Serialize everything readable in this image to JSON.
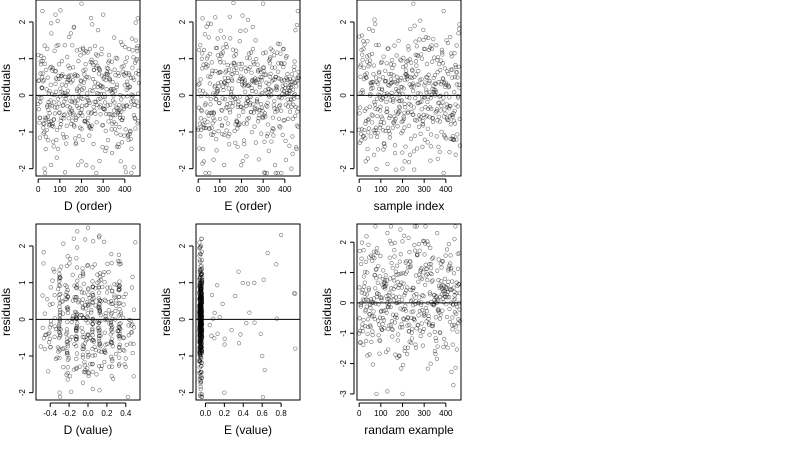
{
  "chart_data": [
    {
      "type": "scatter",
      "xlabel": "D (order)",
      "ylabel": "residuals",
      "xlim": [
        -10,
        470
      ],
      "ylim": [
        -2.2,
        2.6
      ],
      "xticks": [
        0,
        100,
        200,
        300,
        400
      ],
      "yticks": [
        -2,
        -1,
        0,
        1,
        2
      ],
      "hline": 0,
      "grid": false,
      "n_points": 470,
      "noise": {
        "dist": "normal",
        "sd": 0.85,
        "seed": 11
      },
      "points_sample": [
        [
          20,
          2.3
        ],
        [
          80,
          2.2
        ],
        [
          200,
          2.5
        ],
        [
          300,
          2.2
        ],
        [
          460,
          2.1
        ],
        [
          60,
          -1.9
        ],
        [
          30,
          -2.0
        ],
        [
          200,
          -1.8
        ]
      ]
    },
    {
      "type": "scatter",
      "xlabel": "E (order)",
      "ylabel": "residuals",
      "xlim": [
        -10,
        470
      ],
      "ylim": [
        -2.2,
        2.6
      ],
      "xticks": [
        0,
        100,
        200,
        300,
        400
      ],
      "yticks": [
        -2,
        -1,
        0,
        1,
        2
      ],
      "hline": 0,
      "grid": false,
      "n_points": 470,
      "noise": {
        "dist": "normal",
        "sd": 0.85,
        "seed": 23
      },
      "points_sample": [
        [
          300,
          2.5
        ],
        [
          460,
          2.3
        ],
        [
          20,
          2.1
        ],
        [
          120,
          -1.9
        ],
        [
          430,
          -2.0
        ]
      ]
    },
    {
      "type": "scatter",
      "xlabel": "sample index",
      "ylabel": "residuals",
      "xlim": [
        -10,
        470
      ],
      "ylim": [
        -2.2,
        2.6
      ],
      "xticks": [
        0,
        100,
        200,
        300,
        400
      ],
      "yticks": [
        -2,
        -1,
        0,
        1,
        2
      ],
      "hline": 0,
      "grid": false,
      "n_points": 470,
      "noise": {
        "dist": "normal",
        "sd": 0.85,
        "seed": 37
      },
      "points_sample": [
        [
          250,
          2.5
        ],
        [
          390,
          2.3
        ],
        [
          200,
          -2.0
        ],
        [
          210,
          -1.8
        ]
      ]
    },
    {
      "type": "scatter",
      "xlabel": "D (value)",
      "ylabel": "residuals",
      "xlim": [
        -0.55,
        0.55
      ],
      "ylim": [
        -2.2,
        2.6
      ],
      "xticks": [
        -0.4,
        -0.2,
        0.0,
        0.2,
        0.4
      ],
      "xtick_labels": [
        "-0.4",
        "-0.2",
        "0.0",
        "0.2",
        "0.4"
      ],
      "yticks": [
        -2,
        -1,
        0,
        1,
        2
      ],
      "hline": 0,
      "grid": false,
      "n_points": 470,
      "x_distribution": {
        "mixture": "vertical columns at discrete values plus uniform spread",
        "columns": [
          -0.3,
          -0.22,
          -0.12,
          -0.05,
          0.0,
          0.05,
          0.12,
          0.18,
          0.25,
          0.33
        ],
        "spread": [
          -0.5,
          0.5
        ]
      },
      "noise": {
        "dist": "normal",
        "sd": 0.85,
        "seed": 41
      },
      "points_sample": [
        [
          -0.15,
          2.2
        ],
        [
          0.0,
          2.5
        ],
        [
          0.5,
          2.1
        ],
        [
          0.1,
          1.0
        ],
        [
          -0.3,
          -2.0
        ],
        [
          0.05,
          -1.9
        ]
      ]
    },
    {
      "type": "scatter",
      "xlabel": "E (value)",
      "ylabel": "residuals",
      "xlim": [
        -0.1,
        1.0
      ],
      "ylim": [
        -2.2,
        2.6
      ],
      "xticks": [
        0.0,
        0.2,
        0.4,
        0.6,
        0.8
      ],
      "xtick_labels": [
        "0.0",
        "0.2",
        "0.4",
        "0.6",
        "0.8"
      ],
      "yticks": [
        -2,
        -1,
        0,
        1,
        2
      ],
      "hline": 0,
      "grid": false,
      "n_points": 470,
      "x_distribution": {
        "mixture": "dense cluster near -0.05 with sparse tail to 1.0",
        "cluster_center": -0.05,
        "cluster_width": 0.03,
        "tail_fraction": 0.08
      },
      "noise": {
        "dist": "normal",
        "sd": 0.8,
        "seed": 53
      },
      "points_sample": [
        [
          0.8,
          2.3
        ],
        [
          0.75,
          1.5
        ],
        [
          0.35,
          1.3
        ],
        [
          0.95,
          0.7
        ],
        [
          0.95,
          -0.8
        ],
        [
          0.6,
          -1.0
        ],
        [
          0.2,
          -2.0
        ]
      ]
    },
    {
      "type": "scatter",
      "xlabel": "randam example",
      "ylabel": "residuals",
      "xlim": [
        -10,
        470
      ],
      "ylim": [
        -3.2,
        2.6
      ],
      "xticks": [
        0,
        100,
        200,
        300,
        400
      ],
      "yticks": [
        -3,
        -2,
        -1,
        0,
        1,
        2
      ],
      "hline": 0,
      "grid": false,
      "n_points": 470,
      "noise": {
        "dist": "normal",
        "sd": 1.0,
        "seed": 67
      },
      "points_sample": [
        [
          80,
          -3.0
        ],
        [
          200,
          -3.0
        ],
        [
          130,
          2.3
        ],
        [
          360,
          2.3
        ],
        [
          440,
          2.1
        ]
      ]
    }
  ]
}
